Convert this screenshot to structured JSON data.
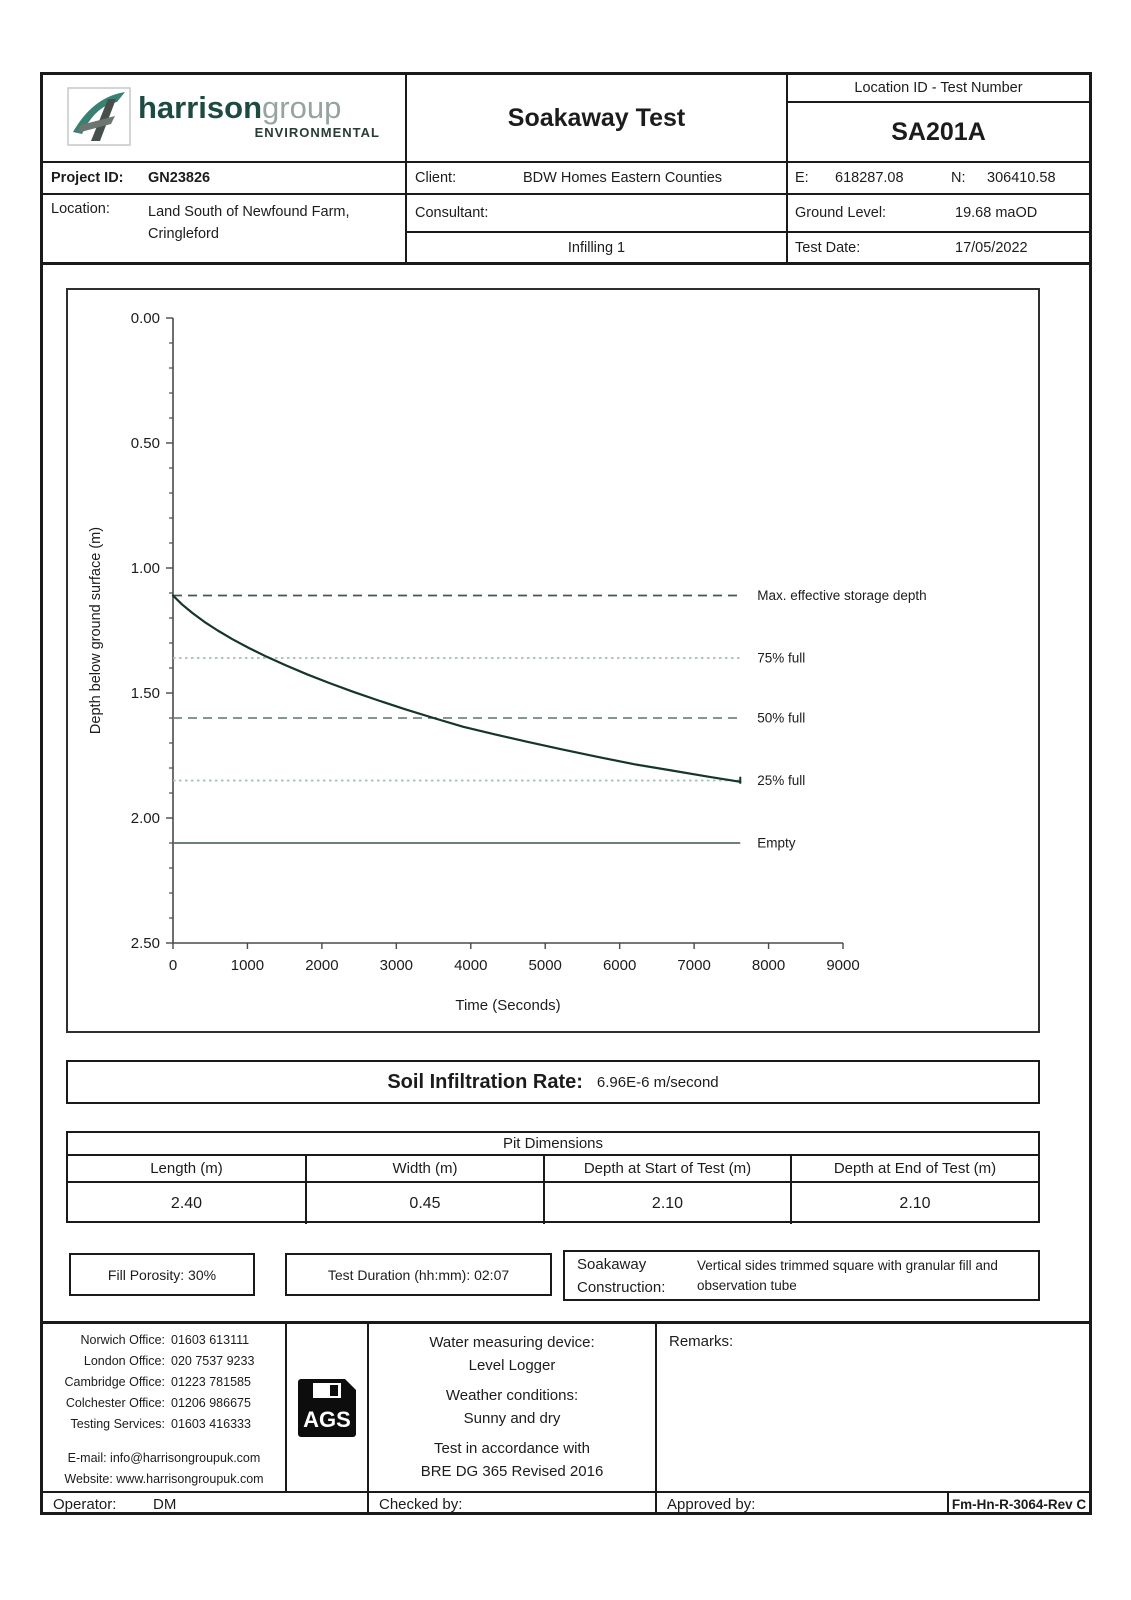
{
  "header": {
    "logo": {
      "brand_primary": "harrison",
      "brand_secondary": "group",
      "brand_sub": "ENVIRONMENTAL",
      "brand_primary_color": "#1d4b42",
      "brand_secondary_color": "#97a39f",
      "brand_sub_color": "#2a3b36"
    },
    "title": "Soakaway Test",
    "location_id_label": "Location ID  -  Test Number",
    "test_number": "SA201A",
    "project_id_label": "Project ID:",
    "project_id": "GN23826",
    "client_label": "Client:",
    "client": "BDW Homes Eastern Counties",
    "easting_label": "E:",
    "easting": "618287.08",
    "northing_label": "N:",
    "northing": "306410.58",
    "location_label": "Location:",
    "location_line1": "Land South of Newfound Farm,",
    "location_line2": "Cringleford",
    "consultant_label": "Consultant:",
    "consultant": "",
    "infilling": "Infilling 1",
    "ground_level_label": "Ground Level:",
    "ground_level": "19.68 maOD",
    "test_date_label": "Test Date:",
    "test_date": "17/05/2022"
  },
  "chart_data": {
    "type": "line",
    "title": "",
    "xlabel": "Time (Seconds)",
    "ylabel": "Depth below ground surface (m)",
    "xlim": [
      0,
      9000
    ],
    "ylim": [
      0,
      2.5
    ],
    "y_axis_direction": "depth increases downward",
    "grid": false,
    "x_ticks": [
      0,
      1000,
      2000,
      3000,
      4000,
      5000,
      6000,
      7000,
      8000,
      9000
    ],
    "y_ticks": [
      0.0,
      0.5,
      1.0,
      1.5,
      2.0,
      2.5
    ],
    "y_minor_step": 0.1,
    "series": [
      {
        "name": "water-level-curve",
        "color": "#16352c",
        "x": [
          0,
          120,
          260,
          420,
          600,
          800,
          1020,
          1260,
          1520,
          1800,
          2100,
          2420,
          2760,
          3120,
          3500,
          3900,
          4320,
          4760,
          5220,
          5700,
          6200,
          6700,
          7200,
          7620
        ],
        "y": [
          1.11,
          1.145,
          1.18,
          1.215,
          1.25,
          1.285,
          1.32,
          1.355,
          1.39,
          1.425,
          1.46,
          1.495,
          1.53,
          1.565,
          1.6,
          1.635,
          1.665,
          1.695,
          1.725,
          1.755,
          1.785,
          1.81,
          1.835,
          1.855
        ]
      }
    ],
    "reference_lines": [
      {
        "label": "Max. effective storage depth",
        "depth": 1.11,
        "style": "dashed",
        "color": "#46574f"
      },
      {
        "label": "75% full",
        "depth": 1.36,
        "style": "dotted",
        "color": "#a3bcb7"
      },
      {
        "label": "50% full",
        "depth": 1.6,
        "style": "dashed",
        "color": "#76867f"
      },
      {
        "label": "25% full",
        "depth": 1.85,
        "style": "dotted",
        "color": "#a3bcb7"
      },
      {
        "label": "Empty",
        "depth": 2.1,
        "style": "solid",
        "color": "#5a6b66"
      }
    ],
    "legend_position": "right-of-lines"
  },
  "results": {
    "soil_infiltration_rate_label": "Soil Infiltration Rate:",
    "soil_infiltration_rate": "6.96E-6 m/second"
  },
  "pit_dimensions": {
    "title": "Pit Dimensions",
    "headers": [
      "Length (m)",
      "Width (m)",
      "Depth at Start of Test (m)",
      "Depth at End of Test (m)"
    ],
    "values": [
      "2.40",
      "0.45",
      "2.10",
      "2.10"
    ]
  },
  "test_info": {
    "fill_porosity": "Fill Porosity: 30%",
    "test_duration": "Test Duration (hh:mm): 02:07",
    "construction_label": "Soakaway Construction:",
    "construction": "Vertical sides trimmed square with granular fill and observation tube"
  },
  "footer": {
    "offices": [
      {
        "label": "Norwich Office:",
        "phone": "01603 613111"
      },
      {
        "label": "London Office:",
        "phone": "020 7537 9233"
      },
      {
        "label": "Cambridge Office:",
        "phone": "01223 781585"
      },
      {
        "label": "Colchester Office:",
        "phone": "01206 986675"
      },
      {
        "label": "Testing Services:",
        "phone": "01603 416333"
      }
    ],
    "email_line": "E-mail: info@harrisongroupuk.com",
    "website_line": "Website: www.harrisongroupuk.com",
    "ags_logo_text": "AGS",
    "device_label": "Water measuring device:",
    "device": "Level Logger",
    "weather_label": "Weather conditions:",
    "weather": "Sunny and dry",
    "accordance_line1": "Test in accordance with",
    "accordance_line2": "BRE DG 365 Revised 2016",
    "remarks_label": "Remarks:",
    "operator_label": "Operator:",
    "operator": "DM",
    "checked_label": "Checked by:",
    "approved_label": "Approved by:",
    "form_ref": "Fm-Hn-R-3064-Rev C"
  }
}
